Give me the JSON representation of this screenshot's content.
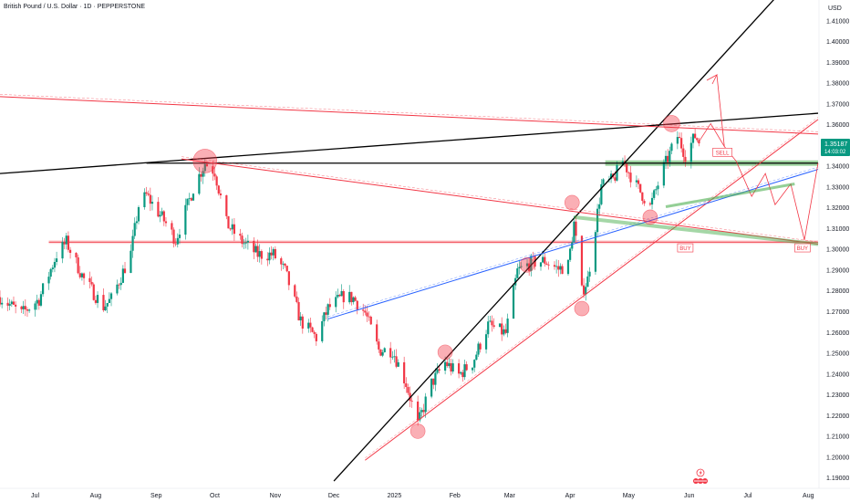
{
  "header": {
    "title": "British Pound / U.S. Dollar · 1D · PEPPERSTONE",
    "currency": "USD"
  },
  "price_tag": {
    "price": "1.35187",
    "countdown": "14:03:02",
    "color": "#089981"
  },
  "colors": {
    "up": "#089981",
    "down": "#f23645",
    "black_line": "#000000",
    "red_line": "#f23645",
    "blue_line": "#2962ff",
    "green_zone": "#4caf50",
    "circle_fill": "#f2364566"
  },
  "icons": [
    "lightning-icon",
    "us-flag-icon"
  ],
  "chart_data": {
    "type": "candlestick",
    "title": "British Pound / U.S. Dollar · 1D · PEPPERSTONE",
    "y_unit": "USD",
    "ylim": [
      1.185,
      1.42
    ],
    "y_ticks": [
      "1.19000",
      "1.20000",
      "1.21000",
      "1.22000",
      "1.23000",
      "1.24000",
      "1.25000",
      "1.26000",
      "1.27000",
      "1.28000",
      "1.29000",
      "1.30000",
      "1.31000",
      "1.32000",
      "1.33000",
      "1.34000",
      "1.35000",
      "1.36000",
      "1.37000",
      "1.38000",
      "1.39000",
      "1.40000",
      "1.41000"
    ],
    "x_ticks": [
      "Jul",
      "Aug",
      "Sep",
      "Oct",
      "Nov",
      "Dec",
      "2025",
      "Feb",
      "Mar",
      "Apr",
      "May",
      "Jun",
      "Jul",
      "Aug"
    ],
    "x_tick_values": [
      "2024-07-01",
      "2024-08-01",
      "2024-09-01",
      "2024-10-01",
      "2024-11-01",
      "2024-12-01",
      "2025-01-01",
      "2025-02-01",
      "2025-03-01",
      "2025-04-01",
      "2025-05-01",
      "2025-06-01",
      "2025-07-01",
      "2025-08-01"
    ],
    "x_range": [
      "2024-06-13",
      "2025-08-06"
    ],
    "close_path": [
      [
        "2024-06-13",
        1.277
      ],
      [
        "2024-06-24",
        1.269
      ],
      [
        "2024-07-03",
        1.276
      ],
      [
        "2024-07-12",
        1.2975
      ],
      [
        "2024-07-17",
        1.3035
      ],
      [
        "2024-07-26",
        1.2855
      ],
      [
        "2024-08-05",
        1.2725
      ],
      [
        "2024-08-09",
        1.276
      ],
      [
        "2024-08-19",
        1.298
      ],
      [
        "2024-08-23",
        1.321
      ],
      [
        "2024-08-27",
        1.326
      ],
      [
        "2024-09-06",
        1.3125
      ],
      [
        "2024-09-11",
        1.3045
      ],
      [
        "2024-09-20",
        1.3295
      ],
      [
        "2024-09-26",
        1.3415
      ],
      [
        "2024-10-01",
        1.3375
      ],
      [
        "2024-10-07",
        1.3125
      ],
      [
        "2024-10-14",
        1.3045
      ],
      [
        "2024-10-23",
        1.2975
      ],
      [
        "2024-10-31",
        1.2975
      ],
      [
        "2024-11-06",
        1.2895
      ],
      [
        "2024-11-14",
        1.2655
      ],
      [
        "2024-11-22",
        1.2575
      ],
      [
        "2024-11-28",
        1.2715
      ],
      [
        "2024-12-06",
        1.2775
      ],
      [
        "2024-12-11",
        1.2765
      ],
      [
        "2024-12-17",
        1.2695
      ],
      [
        "2024-12-24",
        1.2515
      ],
      [
        "2024-12-31",
        1.2515
      ],
      [
        "2025-01-07",
        1.2355
      ],
      [
        "2025-01-13",
        1.2155
      ],
      [
        "2025-01-20",
        1.2355
      ],
      [
        "2025-01-27",
        1.2455
      ],
      [
        "2025-02-03",
        1.2395
      ],
      [
        "2025-02-10",
        1.2455
      ],
      [
        "2025-02-18",
        1.2635
      ],
      [
        "2025-02-27",
        1.2595
      ],
      [
        "2025-03-05",
        1.2895
      ],
      [
        "2025-03-12",
        1.2935
      ],
      [
        "2025-03-19",
        1.2945
      ],
      [
        "2025-03-26",
        1.2905
      ],
      [
        "2025-03-31",
        1.2925
      ],
      [
        "2025-04-03",
        1.3125
      ],
      [
        "2025-04-07",
        1.2795
      ],
      [
        "2025-04-10",
        1.2855
      ],
      [
        "2025-04-17",
        1.3305
      ],
      [
        "2025-04-23",
        1.3335
      ],
      [
        "2025-04-28",
        1.3425
      ],
      [
        "2025-05-05",
        1.3305
      ],
      [
        "2025-05-12",
        1.3205
      ],
      [
        "2025-05-19",
        1.3395
      ],
      [
        "2025-05-26",
        1.3545
      ],
      [
        "2025-05-30",
        1.3455
      ],
      [
        "2025-06-04",
        1.3545
      ],
      [
        "2025-06-06",
        1.3519
      ]
    ],
    "zigzag_projection": [
      [
        "2025-06-06",
        1.3519
      ],
      [
        "2025-06-12",
        1.3605
      ],
      [
        "2025-06-19",
        1.3495
      ],
      [
        "2025-06-25",
        1.3425
      ],
      [
        "2025-07-03",
        1.3255
      ],
      [
        "2025-07-10",
        1.3365
      ],
      [
        "2025-07-15",
        1.3215
      ],
      [
        "2025-07-23",
        1.3315
      ],
      [
        "2025-07-30",
        1.3045
      ],
      [
        "2025-08-06",
        1.3415
      ]
    ],
    "trendlines": [
      {
        "color": "black",
        "points": [
          [
            "2024-06-13",
            1.3365
          ],
          [
            "2025-08-06",
            1.3655
          ]
        ]
      },
      {
        "color": "black",
        "points": [
          [
            "2024-12-01",
            1.1885
          ],
          [
            "2025-08-06",
            1.4435
          ]
        ]
      },
      {
        "color": "black",
        "points": [
          [
            "2024-08-27",
            1.3415
          ],
          [
            "2025-08-06",
            1.3415
          ]
        ]
      },
      {
        "color": "red",
        "points": [
          [
            "2024-06-13",
            1.3735
          ],
          [
            "2025-08-06",
            1.3555
          ]
        ]
      },
      {
        "color": "red",
        "points": [
          [
            "2024-09-14",
            1.3435
          ],
          [
            "2025-08-06",
            1.3025
          ]
        ]
      },
      {
        "color": "red",
        "points": [
          [
            "2024-12-17",
            1.1985
          ],
          [
            "2025-08-06",
            1.3625
          ]
        ]
      },
      {
        "color": "blue",
        "points": [
          [
            "2024-11-28",
            1.2665
          ],
          [
            "2025-08-06",
            1.3385
          ]
        ]
      }
    ],
    "horizontal_zones": [
      {
        "color": "red",
        "y": 1.3035,
        "from": "2024-07-08",
        "to": "2025-08-06"
      },
      {
        "color": "green",
        "y": 1.3415,
        "from": "2025-04-19",
        "to": "2025-08-06"
      }
    ],
    "annotations": [
      {
        "text": "SELL",
        "date": "2025-06-18",
        "y": 1.3465
      },
      {
        "text": "BUY",
        "date": "2025-05-30",
        "y": 1.3005
      },
      {
        "text": "BUY",
        "date": "2025-07-29",
        "y": 1.3005
      }
    ],
    "grid": false,
    "legend": "none"
  }
}
